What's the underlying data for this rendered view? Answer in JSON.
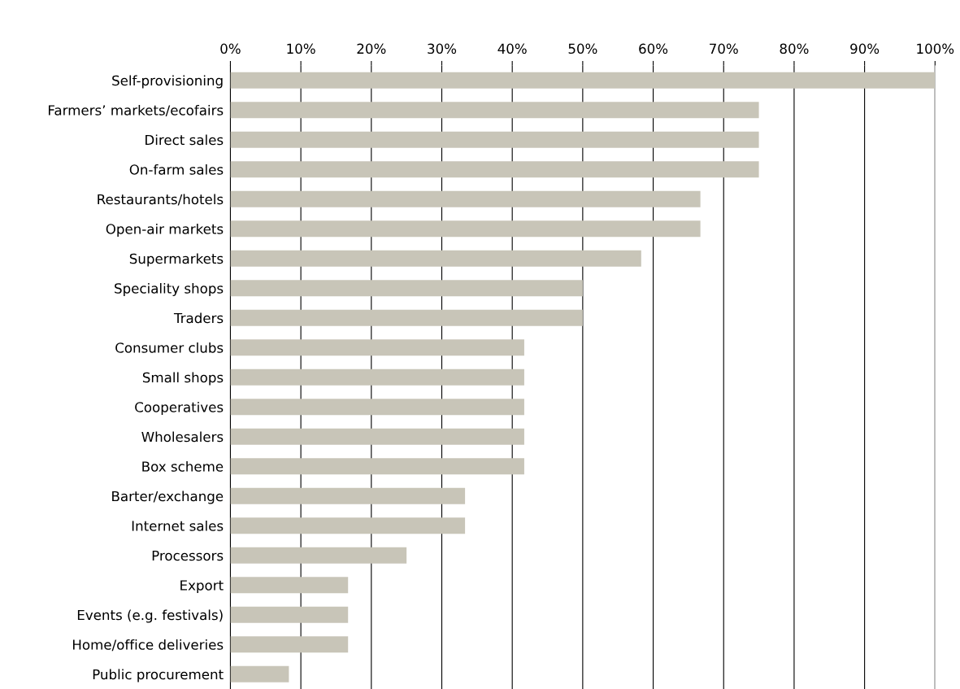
{
  "chart_data": {
    "type": "bar",
    "orientation": "horizontal",
    "categories": [
      "Self-provisioning",
      "Farmers’ markets/ecofairs",
      "Direct sales",
      "On-farm sales",
      "Restaurants/hotels",
      "Open-air markets",
      "Supermarkets",
      "Speciality shops",
      "Traders",
      "Consumer clubs",
      "Small shops",
      "Cooperatives",
      "Wholesalers",
      "Box scheme",
      "Barter/exchange",
      "Internet sales",
      "Processors",
      "Export",
      "Events (e.g. festivals)",
      "Home/office deliveries",
      "Public procurement"
    ],
    "values": [
      100,
      75,
      75,
      75,
      66.7,
      66.7,
      58.3,
      50,
      50,
      41.7,
      41.7,
      41.7,
      41.7,
      41.7,
      33.3,
      33.3,
      25,
      16.7,
      16.7,
      16.7,
      8.3
    ],
    "color": "#c8c5b8",
    "xlim": [
      0,
      100
    ],
    "xticks": [
      {
        "value": 0,
        "label": "0%"
      },
      {
        "value": 10,
        "label": "10%"
      },
      {
        "value": 20,
        "label": "20%"
      },
      {
        "value": 30,
        "label": "30%"
      },
      {
        "value": 40,
        "label": "40%"
      },
      {
        "value": 50,
        "label": "50%"
      },
      {
        "value": 60,
        "label": "60%"
      },
      {
        "value": 70,
        "label": "70%"
      },
      {
        "value": 80,
        "label": "80%"
      },
      {
        "value": 90,
        "label": "90%"
      },
      {
        "value": 100,
        "label": "100%"
      }
    ],
    "grid": "x",
    "legend": false
  }
}
